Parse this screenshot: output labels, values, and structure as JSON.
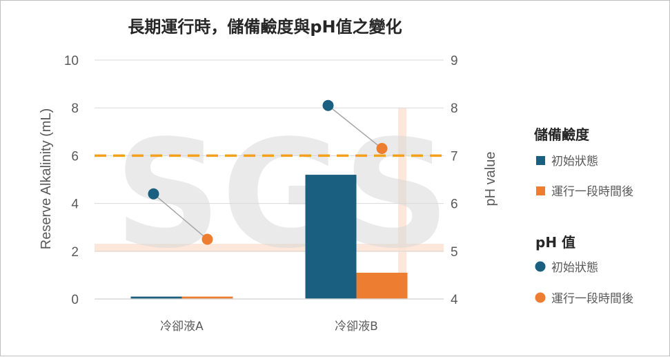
{
  "chart_data": {
    "type": "bar",
    "title": "長期運行時，儲備鹼度與pH值之變化",
    "ylabel": "Reserve Alkalinity (mL)",
    "y2label": "pH value",
    "ylim": [
      0,
      10
    ],
    "y2lim": [
      4,
      9
    ],
    "yticks": [
      "0",
      "2",
      "4",
      "6",
      "8",
      "10"
    ],
    "y2ticks": [
      "4",
      "5",
      "6",
      "7",
      "8",
      "9"
    ],
    "categories": [
      "冷卻液A",
      "冷卻液B"
    ],
    "bar_legend_title": "儲備鹼度",
    "ph_legend_title": "pH 值",
    "series": [
      {
        "name": "初始狀態",
        "kind": "bar",
        "axis": "left",
        "color": "#1a5e80",
        "values": [
          0.1,
          5.2
        ]
      },
      {
        "name": "運行一段時間後",
        "kind": "bar",
        "axis": "left",
        "color": "#ed7d31",
        "values": [
          0.1,
          1.1
        ]
      },
      {
        "name": "初始狀態",
        "kind": "point",
        "axis": "right",
        "color": "#1a5e80",
        "values": [
          6.2,
          8.05
        ]
      },
      {
        "name": "運行一段時間後",
        "kind": "point",
        "axis": "right",
        "color": "#ed7d31",
        "values": [
          5.25,
          7.15
        ]
      }
    ],
    "reference_line": {
      "axis": "left",
      "value": 6,
      "color": "#f5a01a",
      "style": "dashed"
    },
    "grid": true,
    "legend_position": "right"
  },
  "watermark": {
    "text": "SGS"
  }
}
